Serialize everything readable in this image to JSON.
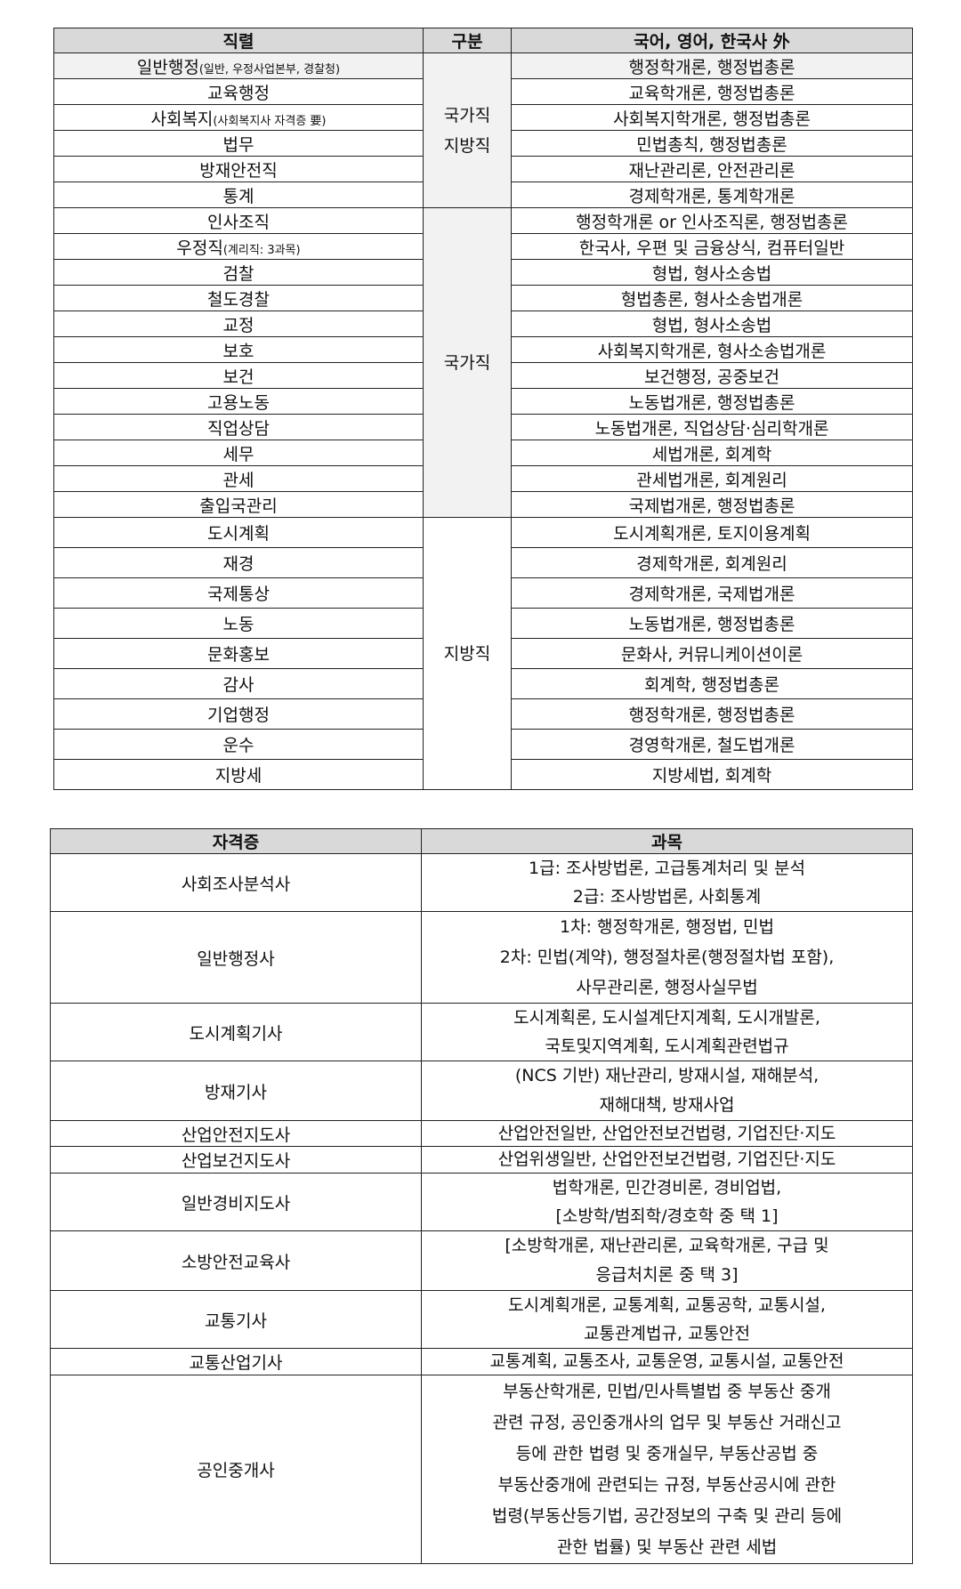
{
  "table1": {
    "headers": [
      "직렬",
      "구분",
      "국어, 영어, 한국사 外"
    ],
    "groups": [
      {
        "label_lines": [
          "국가직",
          "지방직"
        ],
        "shaded": true,
        "rows": [
          {
            "job": "일반행정",
            "note": "(일반, 우정사업본부, 경찰청)",
            "subjects": "행정학개론, 행정법총론"
          },
          {
            "job": "교육행정",
            "note": "",
            "subjects": "교육학개론, 행정법총론"
          },
          {
            "job": "사회복지",
            "note": "(사회복지사 자격증 要)",
            "subjects": "사회복지학개론, 행정법총론"
          },
          {
            "job": "법무",
            "note": "",
            "subjects": "민법총칙, 행정법총론"
          },
          {
            "job": "방재안전직",
            "note": "",
            "subjects": "재난관리론, 안전관리론"
          },
          {
            "job": "통계",
            "note": "",
            "subjects": "경제학개론, 통계학개론"
          }
        ]
      },
      {
        "label_lines": [
          "국가직"
        ],
        "shaded": true,
        "rows": [
          {
            "job": "인사조직",
            "note": "",
            "subjects": "행정학개론 or 인사조직론, 행정법총론"
          },
          {
            "job": "우정직",
            "note": "(계리직: 3과목)",
            "subjects": "한국사, 우편 및 금융상식, 컴퓨터일반"
          },
          {
            "job": "검찰",
            "note": "",
            "subjects": "형법, 형사소송법"
          },
          {
            "job": "철도경찰",
            "note": "",
            "subjects": "형법총론, 형사소송법개론"
          },
          {
            "job": "교정",
            "note": "",
            "subjects": "형법, 형사소송법"
          },
          {
            "job": "보호",
            "note": "",
            "subjects": "사회복지학개론, 형사소송법개론"
          },
          {
            "job": "보건",
            "note": "",
            "subjects": "보건행정, 공중보건"
          },
          {
            "job": "고용노동",
            "note": "",
            "subjects": "노동법개론, 행정법총론"
          },
          {
            "job": "직업상담",
            "note": "",
            "subjects": "노동법개론, 직업상담·심리학개론"
          },
          {
            "job": "세무",
            "note": "",
            "subjects": "세법개론, 회계학"
          },
          {
            "job": "관세",
            "note": "",
            "subjects": "관세법개론, 회계원리"
          },
          {
            "job": "출입국관리",
            "note": "",
            "subjects": "국제법개론, 행정법총론"
          }
        ]
      },
      {
        "label_lines": [
          "지방직"
        ],
        "shaded": false,
        "rows": [
          {
            "job": "도시계획",
            "note": "",
            "subjects": "도시계획개론, 토지이용계획"
          },
          {
            "job": "재경",
            "note": "",
            "subjects": "경제학개론, 회계원리"
          },
          {
            "job": "국제통상",
            "note": "",
            "subjects": "경제학개론, 국제법개론"
          },
          {
            "job": "노동",
            "note": "",
            "subjects": "노동법개론, 행정법총론"
          },
          {
            "job": "문화홍보",
            "note": "",
            "subjects": "문화사, 커뮤니케이션이론"
          },
          {
            "job": "감사",
            "note": "",
            "subjects": "회계학, 행정법총론"
          },
          {
            "job": "기업행정",
            "note": "",
            "subjects": "행정학개론, 행정법총론"
          },
          {
            "job": "운수",
            "note": "",
            "subjects": "경영학개론, 철도법개론"
          },
          {
            "job": "지방세",
            "note": "",
            "subjects": "지방세법, 회계학"
          }
        ]
      }
    ]
  },
  "table2": {
    "headers": [
      "자격증",
      "과목"
    ],
    "rows": [
      {
        "cert": "사회조사분석사",
        "lines": [
          "1급: 조사방법론, 고급통계처리 및 분석",
          "2급: 조사방법론, 사회통계"
        ]
      },
      {
        "cert": "일반행정사",
        "lines": [
          "1차: 행정학개론, 행정법, 민법",
          "2차: 민법(계약), 행정절차론(행정절차법 포함),",
          "사무관리론, 행정사실무법"
        ]
      },
      {
        "cert": "도시계획기사",
        "lines": [
          "도시계획론, 도시설계단지계획, 도시개발론,",
          "국토및지역계획, 도시계획관련법규"
        ]
      },
      {
        "cert": "방재기사",
        "lines": [
          "(NCS 기반) 재난관리, 방재시설, 재해분석,",
          "재해대책, 방재사업"
        ]
      },
      {
        "cert": "산업안전지도사",
        "lines": [
          "산업안전일반, 산업안전보건법령, 기업진단·지도"
        ]
      },
      {
        "cert": "산업보건지도사",
        "lines": [
          "산업위생일반, 산업안전보건법령, 기업진단·지도"
        ]
      },
      {
        "cert": "일반경비지도사",
        "lines": [
          "법학개론, 민간경비론, 경비업법,",
          "[소방학/범죄학/경호학 중 택 1]"
        ]
      },
      {
        "cert": "소방안전교육사",
        "lines": [
          "[소방학개론, 재난관리론, 교육학개론, 구급 및",
          "응급처치론 중 택 3]"
        ]
      },
      {
        "cert": "교통기사",
        "lines": [
          "도시계획개론, 교통계획, 교통공학, 교통시설,",
          "교통관계법규, 교통안전"
        ]
      },
      {
        "cert": "교통산업기사",
        "lines": [
          "교통계획, 교통조사, 교통운영, 교통시설, 교통안전"
        ]
      },
      {
        "cert": "공인중개사",
        "lines": [
          "부동산학개론, 민법/민사특별법 중 부동산 중개",
          "관련 규정, 공인중개사의 업무 및 부동산 거래신고",
          "등에 관한 법령 및 중개실무, 부동산공법 중",
          "부동산중개에 관련되는 규정, 부동산공시에 관한",
          "법령(부동산등기법, 공간정보의 구축 및 관리 등에",
          "관한 법률) 및 부동산 관련 세법"
        ]
      }
    ]
  },
  "colors": {
    "header_bg": "#d9d9d9",
    "shade_bg": "#f2f2f2",
    "border": "#222222"
  }
}
